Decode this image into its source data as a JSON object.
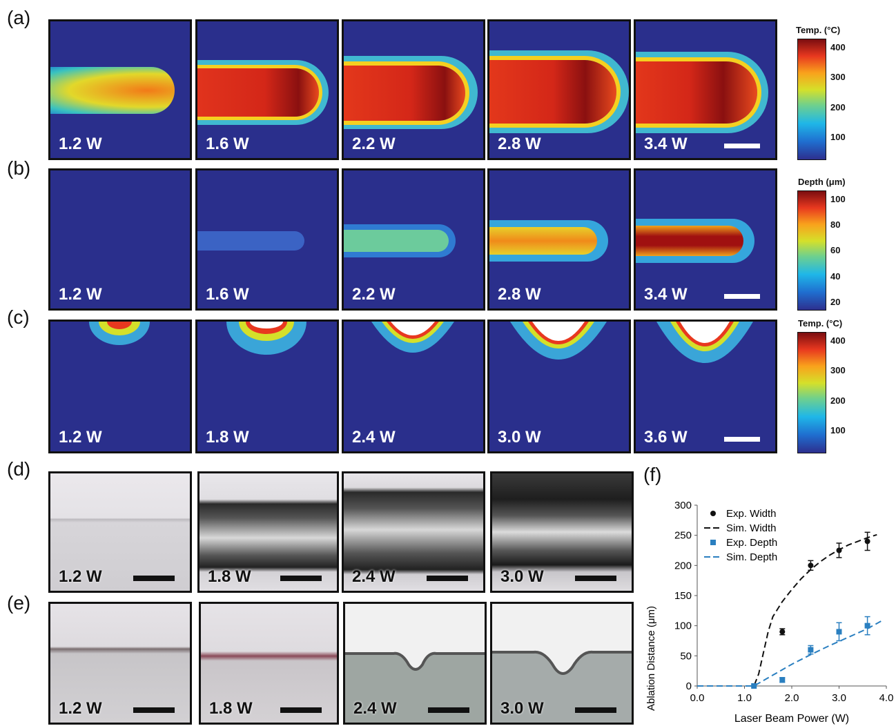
{
  "panel_labels": {
    "a": "(a)",
    "b": "(b)",
    "c": "(c)",
    "d": "(d)",
    "e": "(e)",
    "f": "(f)"
  },
  "row_a": {
    "powers": [
      "1.2 W",
      "1.6 W",
      "2.2 W",
      "2.8 W",
      "3.4 W"
    ]
  },
  "row_b": {
    "powers": [
      "1.2 W",
      "1.6 W",
      "2.2 W",
      "2.8 W",
      "3.4 W"
    ]
  },
  "row_c": {
    "powers": [
      "1.2 W",
      "1.8 W",
      "2.4 W",
      "3.0 W",
      "3.6 W"
    ]
  },
  "row_d": {
    "powers": [
      "1.2 W",
      "1.8 W",
      "2.4 W",
      "3.0 W"
    ]
  },
  "row_e": {
    "powers": [
      "1.2 W",
      "1.8 W",
      "2.4 W",
      "3.0 W"
    ]
  },
  "colorbar_a": {
    "title": "Temp. (°C)",
    "ticks": [
      "400",
      "300",
      "200",
      "100"
    ]
  },
  "colorbar_b": {
    "title": "Depth (μm)",
    "ticks": [
      "100",
      "80",
      "60",
      "40",
      "20"
    ]
  },
  "colorbar_c": {
    "title": "Temp. (°C)",
    "ticks": [
      "400",
      "300",
      "200",
      "100"
    ]
  },
  "chart_data": {
    "type": "scatter",
    "xlabel": "Laser Beam Power (W)",
    "ylabel": "Ablation Distance (μm)",
    "xlim": [
      0.0,
      4.0
    ],
    "ylim": [
      0,
      300
    ],
    "xticks": [
      "0.0",
      "1.0",
      "2.0",
      "3.0",
      "4.0"
    ],
    "yticks": [
      "0",
      "50",
      "100",
      "150",
      "200",
      "250",
      "300"
    ],
    "legend_position": "top-left",
    "grid": false,
    "series": [
      {
        "name": "Exp. Width",
        "style": "points",
        "marker": "circle",
        "color": "#111111",
        "x": [
          1.2,
          1.8,
          2.4,
          3.0,
          3.6
        ],
        "y": [
          0,
          90,
          200,
          225,
          240
        ],
        "err": [
          0,
          5,
          8,
          12,
          15
        ]
      },
      {
        "name": "Sim. Width",
        "style": "dashed-line",
        "color": "#111111",
        "x": [
          0.0,
          1.2,
          1.3,
          1.4,
          1.5,
          1.6,
          1.8,
          2.0,
          2.2,
          2.4,
          2.6,
          2.8,
          3.0,
          3.2,
          3.4,
          3.6,
          3.8
        ],
        "y": [
          0,
          0,
          20,
          55,
          90,
          115,
          140,
          160,
          178,
          193,
          206,
          217,
          226,
          234,
          240,
          246,
          251
        ]
      },
      {
        "name": "Exp. Depth",
        "style": "points",
        "marker": "square",
        "color": "#2a7fc0",
        "x": [
          1.2,
          1.8,
          2.4,
          3.0,
          3.6
        ],
        "y": [
          0,
          10,
          60,
          90,
          100
        ],
        "err": [
          0,
          4,
          7,
          15,
          15
        ]
      },
      {
        "name": "Sim. Depth",
        "style": "dashed-line",
        "color": "#2a7fc0",
        "x": [
          0.0,
          1.2,
          1.6,
          2.0,
          2.4,
          2.8,
          3.2,
          3.6,
          3.9
        ],
        "y": [
          0,
          0,
          18,
          36,
          52,
          67,
          81,
          95,
          108
        ]
      }
    ]
  }
}
